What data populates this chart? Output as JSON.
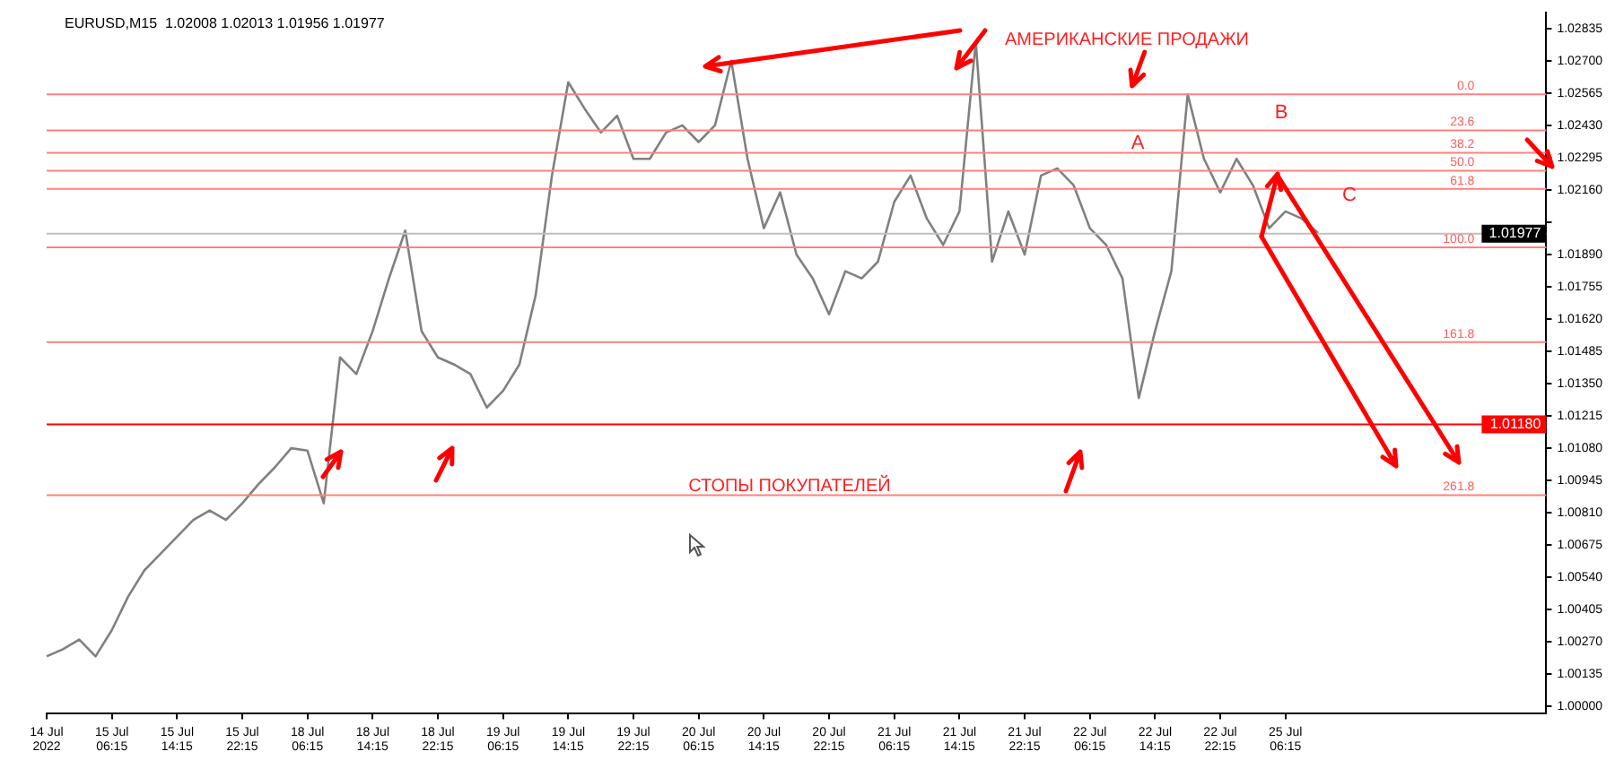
{
  "chart_data": {
    "type": "line",
    "title": "EURUSD,M15  1.02008 1.02013 1.01956 1.01977",
    "categories": [
      "14 Jul 2022",
      null,
      null,
      null,
      "15 Jul 06:15",
      null,
      null,
      null,
      "15 Jul 14:15",
      null,
      null,
      null,
      "15 Jul 22:15",
      null,
      null,
      null,
      "18 Jul 06:15",
      null,
      null,
      null,
      "18 Jul 14:15",
      null,
      null,
      null,
      "18 Jul 22:15",
      null,
      null,
      null,
      "19 Jul 06:15",
      null,
      null,
      null,
      "19 Jul 14:15",
      null,
      null,
      null,
      "19 Jul 22:15",
      null,
      null,
      null,
      "20 Jul 06:15",
      null,
      null,
      null,
      "20 Jul 14:15",
      null,
      null,
      null,
      "20 Jul 22:15",
      null,
      null,
      null,
      "21 Jul 06:15",
      null,
      null,
      null,
      "21 Jul 14:15",
      null,
      null,
      null,
      "21 Jul 22:15",
      null,
      null,
      null,
      "22 Jul 06:15",
      null,
      null,
      null,
      "22 Jul 14:15",
      null,
      null,
      null,
      "22 Jul 22:15",
      null,
      null,
      null,
      "25 Jul 06:15",
      null,
      null,
      null,
      null,
      null,
      null,
      null,
      null,
      null,
      null,
      null,
      null,
      null,
      null,
      null,
      null
    ],
    "series": [
      {
        "color": "#808080",
        "values": [
          1.0021,
          1.0024,
          1.0028,
          1.0021,
          1.0032,
          1.0046,
          1.0057,
          1.0064,
          1.0071,
          1.0078,
          1.0082,
          1.0078,
          1.0085,
          1.0093,
          1.01,
          1.0108,
          1.0107,
          1.0085,
          1.0146,
          1.0139,
          1.0157,
          1.0179,
          1.0199,
          1.0157,
          1.0146,
          1.0143,
          1.0139,
          1.0125,
          1.0132,
          1.0143,
          1.0172,
          1.0222,
          1.0261,
          1.025,
          1.024,
          1.0247,
          1.0229,
          1.0229,
          1.024,
          1.0243,
          1.0236,
          1.0243,
          1.027,
          1.0229,
          1.02,
          1.0215,
          1.0189,
          1.0179,
          1.0164,
          1.0182,
          1.0179,
          1.0186,
          1.0211,
          1.0222,
          1.0204,
          1.0193,
          1.0207,
          1.0278,
          1.0186,
          1.0207,
          1.0189,
          1.0222,
          1.0225,
          1.0218,
          1.02,
          1.0193,
          1.0179,
          1.0129,
          1.0157,
          1.0182,
          1.0256,
          1.0229,
          1.0215,
          1.0229,
          1.0218,
          1.02,
          1.0207,
          1.0204,
          1.0198,
          null,
          null,
          null,
          null,
          null,
          null,
          null,
          null,
          null,
          null,
          null,
          null,
          null,
          null
        ]
      }
    ],
    "ylim": [
      0.9997,
      1.029
    ],
    "yticks": [
      {
        "value": 1.0,
        "label": "1.00000"
      },
      {
        "value": 1.00135,
        "label": "1.00135"
      },
      {
        "value": 1.0027,
        "label": "1.00270"
      },
      {
        "value": 1.00405,
        "label": "1.00405"
      },
      {
        "value": 1.0054,
        "label": "1.00540"
      },
      {
        "value": 1.00675,
        "label": "1.00675"
      },
      {
        "value": 1.0081,
        "label": "1.00810"
      },
      {
        "value": 1.00945,
        "label": "1.00945"
      },
      {
        "value": 1.0108,
        "label": "1.01080"
      },
      {
        "value": 1.01215,
        "label": "1.01215"
      },
      {
        "value": 1.0135,
        "label": "1.01350"
      },
      {
        "value": 1.01485,
        "label": "1.01485"
      },
      {
        "value": 1.0162,
        "label": "1.01620"
      },
      {
        "value": 1.01755,
        "label": "1.01755"
      },
      {
        "value": 1.0189,
        "label": "1.01890"
      },
      {
        "value": 1.02025,
        "label": null
      },
      {
        "value": 1.0216,
        "label": "1.02160"
      },
      {
        "value": 1.02295,
        "label": "1.02295"
      },
      {
        "value": 1.0243,
        "label": "1.02430"
      },
      {
        "value": 1.02565,
        "label": "1.02565"
      },
      {
        "value": 1.027,
        "label": "1.02700"
      },
      {
        "value": 1.02835,
        "label": "1.02835"
      }
    ],
    "ref_lines": [
      {
        "axis": "y",
        "value": 1.0118,
        "label": "1.01180",
        "color": "#ff0000"
      },
      {
        "axis": "y",
        "value": 1.01977,
        "label": "1.01977",
        "color": "#c0c0c0"
      },
      {
        "axis": "y",
        "value": 1.0256,
        "color": "#ff8080"
      },
      {
        "axis": "y",
        "value": 1.02409,
        "color": "#ff8080"
      },
      {
        "axis": "y",
        "value": 1.02315,
        "color": "#ff8080"
      },
      {
        "axis": "y",
        "value": 1.0224,
        "color": "#ff8080"
      },
      {
        "axis": "y",
        "value": 1.02164,
        "color": "#ff8080"
      },
      {
        "axis": "y",
        "value": 1.0192,
        "color": "#ff8080"
      },
      {
        "axis": "y",
        "value": 1.01524,
        "color": "#ff8080"
      },
      {
        "axis": "y",
        "value": 1.00884,
        "color": "#ff8080"
      }
    ],
    "annotations": [
      "АМЕРИКАНСКИЕ ПРОДАЖИ",
      "СТОПЫ ПОКУПАТЕЛЕЙ",
      "A",
      "B",
      "C",
      {
        "text": "0.0",
        "y": 1.0256
      },
      {
        "text": "23.6",
        "y": 1.02409
      },
      {
        "text": "38.2",
        "y": 1.02315
      },
      {
        "text": "50.0",
        "y": 1.0224
      },
      {
        "text": "61.8",
        "y": 1.02164
      },
      {
        "text": "100.0",
        "y": 1.0192
      },
      {
        "text": "161.8",
        "y": 1.01524
      },
      {
        "text": "261.8",
        "y": 1.00884
      }
    ],
    "grid": false,
    "legend": false
  }
}
